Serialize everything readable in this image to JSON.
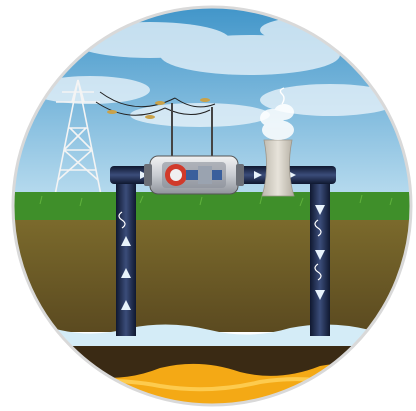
{
  "scene": {
    "subject": "geothermal-power-plant-cross-section"
  },
  "colors": {
    "sky_top": "#3d93c8",
    "sky_bottom": "#b9dcef",
    "grass": "#3f8f2a",
    "soil_top": "#7b6a2c",
    "soil_bottom": "#5b4a20",
    "aquifer_water": "#d4ecf7",
    "dark_rock": "#3a2a14",
    "magma": "#f4a915",
    "pipe": "#1d2b4a",
    "circle_border": "#d9d9d9"
  },
  "flow": {
    "injection_direction": "down",
    "production_direction": "up"
  }
}
